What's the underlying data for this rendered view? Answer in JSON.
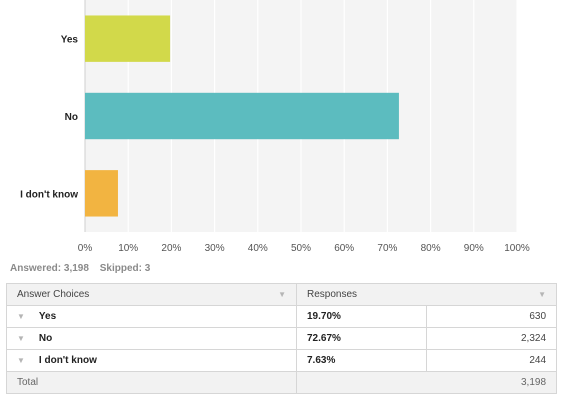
{
  "chart_data": {
    "type": "bar",
    "orientation": "horizontal",
    "categories": [
      "Yes",
      "No",
      "I don't know"
    ],
    "values": [
      19.7,
      72.67,
      7.63
    ],
    "colors": [
      "#d2d94a",
      "#5cbcbf",
      "#f2b441"
    ],
    "xlim": [
      0,
      100
    ],
    "x_ticks": [
      "0%",
      "10%",
      "20%",
      "30%",
      "40%",
      "50%",
      "60%",
      "70%",
      "80%",
      "90%",
      "100%"
    ],
    "grid": true
  },
  "summary": {
    "answered": "Answered: 3,198",
    "skipped": "Skipped: 3"
  },
  "table": {
    "header_choices": "Answer Choices",
    "header_responses": "Responses",
    "rows": [
      {
        "choice": "Yes",
        "pct": "19.70%",
        "count": "630"
      },
      {
        "choice": "No",
        "pct": "72.67%",
        "count": "2,324"
      },
      {
        "choice": "I don't know",
        "pct": "7.63%",
        "count": "244"
      }
    ],
    "total_label": "Total",
    "total_count": "3,198"
  },
  "icons": {
    "sort": "sort-caret-icon",
    "row": "row-caret-icon"
  }
}
